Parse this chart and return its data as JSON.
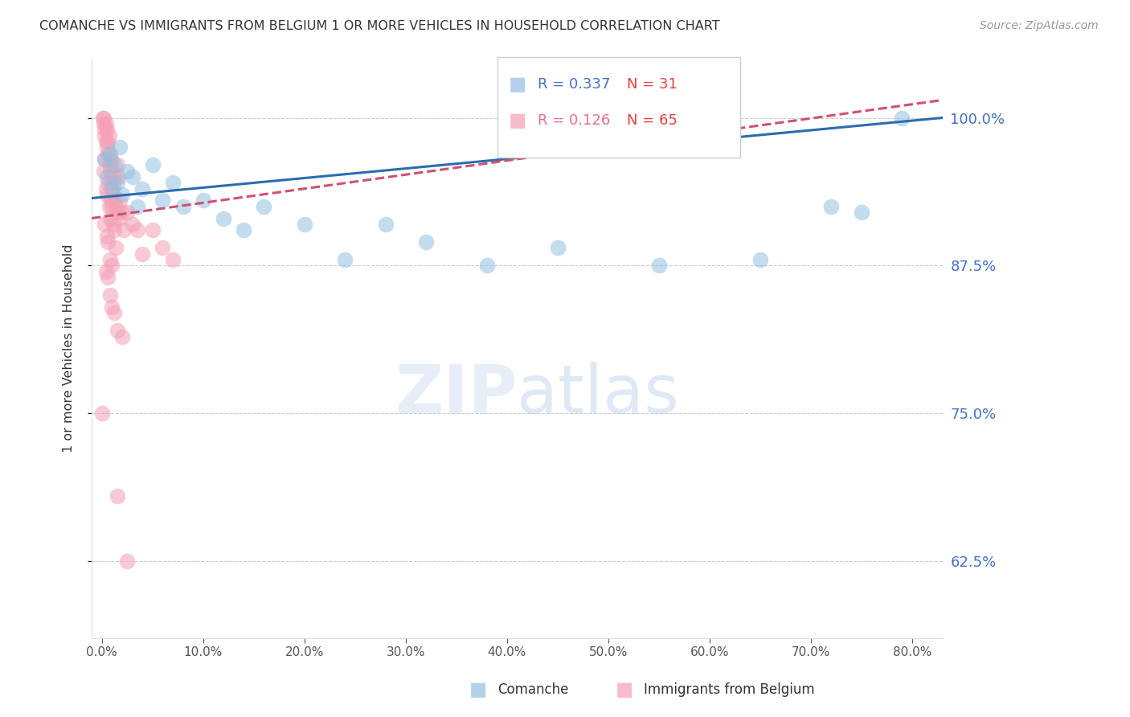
{
  "title": "COMANCHE VS IMMIGRANTS FROM BELGIUM 1 OR MORE VEHICLES IN HOUSEHOLD CORRELATION CHART",
  "source": "Source: ZipAtlas.com",
  "ylabel": "1 or more Vehicles in Household",
  "xlabel_ticks": [
    "0.0%",
    "10.0%",
    "20.0%",
    "30.0%",
    "40.0%",
    "50.0%",
    "60.0%",
    "70.0%",
    "80.0%"
  ],
  "xlabel_vals": [
    0,
    10,
    20,
    30,
    40,
    50,
    60,
    70,
    80
  ],
  "ylabel_ticks": [
    "62.5%",
    "75.0%",
    "87.5%",
    "100.0%"
  ],
  "ylabel_vals": [
    62.5,
    75.0,
    87.5,
    100.0
  ],
  "ylim": [
    56,
    105
  ],
  "xlim": [
    -1,
    83
  ],
  "legend_blue_label": "Comanche",
  "legend_pink_label": "Immigrants from Belgium",
  "R_blue": 0.337,
  "N_blue": 31,
  "R_pink": 0.126,
  "N_pink": 65,
  "blue_color": "#92C0E0",
  "pink_color": "#F4A0B5",
  "trend_blue_color": "#2B6CB0",
  "trend_pink_color": "#D05070",
  "blue_scatter_x": [
    0.3,
    0.5,
    0.8,
    1.0,
    1.2,
    1.5,
    1.8,
    2.0,
    2.5,
    3.0,
    3.5,
    4.0,
    5.0,
    6.0,
    7.0,
    8.0,
    10.0,
    12.0,
    14.0,
    16.0,
    20.0,
    24.0,
    28.0,
    32.0,
    38.0,
    45.0,
    55.0,
    65.0,
    72.0,
    75.0,
    79.0
  ],
  "blue_scatter_y": [
    96.5,
    95.0,
    97.0,
    94.0,
    96.0,
    94.5,
    97.5,
    93.5,
    95.5,
    95.0,
    92.5,
    94.0,
    96.0,
    93.0,
    94.5,
    92.5,
    93.0,
    91.5,
    90.5,
    92.5,
    91.0,
    88.0,
    91.0,
    89.5,
    87.5,
    89.0,
    87.5,
    88.0,
    92.5,
    92.0,
    100.0
  ],
  "pink_scatter_x": [
    0.1,
    0.2,
    0.2,
    0.3,
    0.3,
    0.4,
    0.4,
    0.5,
    0.5,
    0.6,
    0.6,
    0.7,
    0.7,
    0.8,
    0.8,
    0.9,
    0.9,
    1.0,
    1.0,
    1.1,
    1.1,
    1.2,
    1.3,
    1.4,
    1.5,
    1.6,
    1.8,
    2.0,
    2.2,
    2.5,
    3.0,
    3.5,
    4.0,
    5.0,
    6.0,
    7.0,
    0.2,
    0.3,
    0.4,
    0.5,
    0.6,
    0.7,
    0.8,
    0.9,
    1.0,
    1.1,
    1.2,
    1.4,
    1.5,
    1.7,
    0.3,
    0.5,
    0.6,
    0.8,
    1.0,
    0.0,
    1.5,
    2.5,
    0.4,
    0.6,
    0.8,
    1.0,
    1.2,
    1.5,
    2.0
  ],
  "pink_scatter_y": [
    100.0,
    99.5,
    100.0,
    99.0,
    98.5,
    99.5,
    98.0,
    97.5,
    99.0,
    98.0,
    97.0,
    96.5,
    98.5,
    96.0,
    95.5,
    96.5,
    94.5,
    95.5,
    94.0,
    95.0,
    93.5,
    94.5,
    93.0,
    92.5,
    96.0,
    95.0,
    93.0,
    92.0,
    90.5,
    92.0,
    91.0,
    90.5,
    88.5,
    90.5,
    89.0,
    88.0,
    95.5,
    96.5,
    94.0,
    93.5,
    94.5,
    92.5,
    91.5,
    93.0,
    92.5,
    91.0,
    90.5,
    89.0,
    92.0,
    91.5,
    91.0,
    90.0,
    89.5,
    88.0,
    87.5,
    75.0,
    68.0,
    62.5,
    87.0,
    86.5,
    85.0,
    84.0,
    83.5,
    82.0,
    81.5
  ],
  "blue_trend_x0": -1,
  "blue_trend_x1": 83,
  "blue_trend_y0": 93.2,
  "blue_trend_y1": 100.0,
  "pink_trend_x0": -1,
  "pink_trend_x1": 83,
  "pink_trend_y0": 91.5,
  "pink_trend_y1": 101.5
}
